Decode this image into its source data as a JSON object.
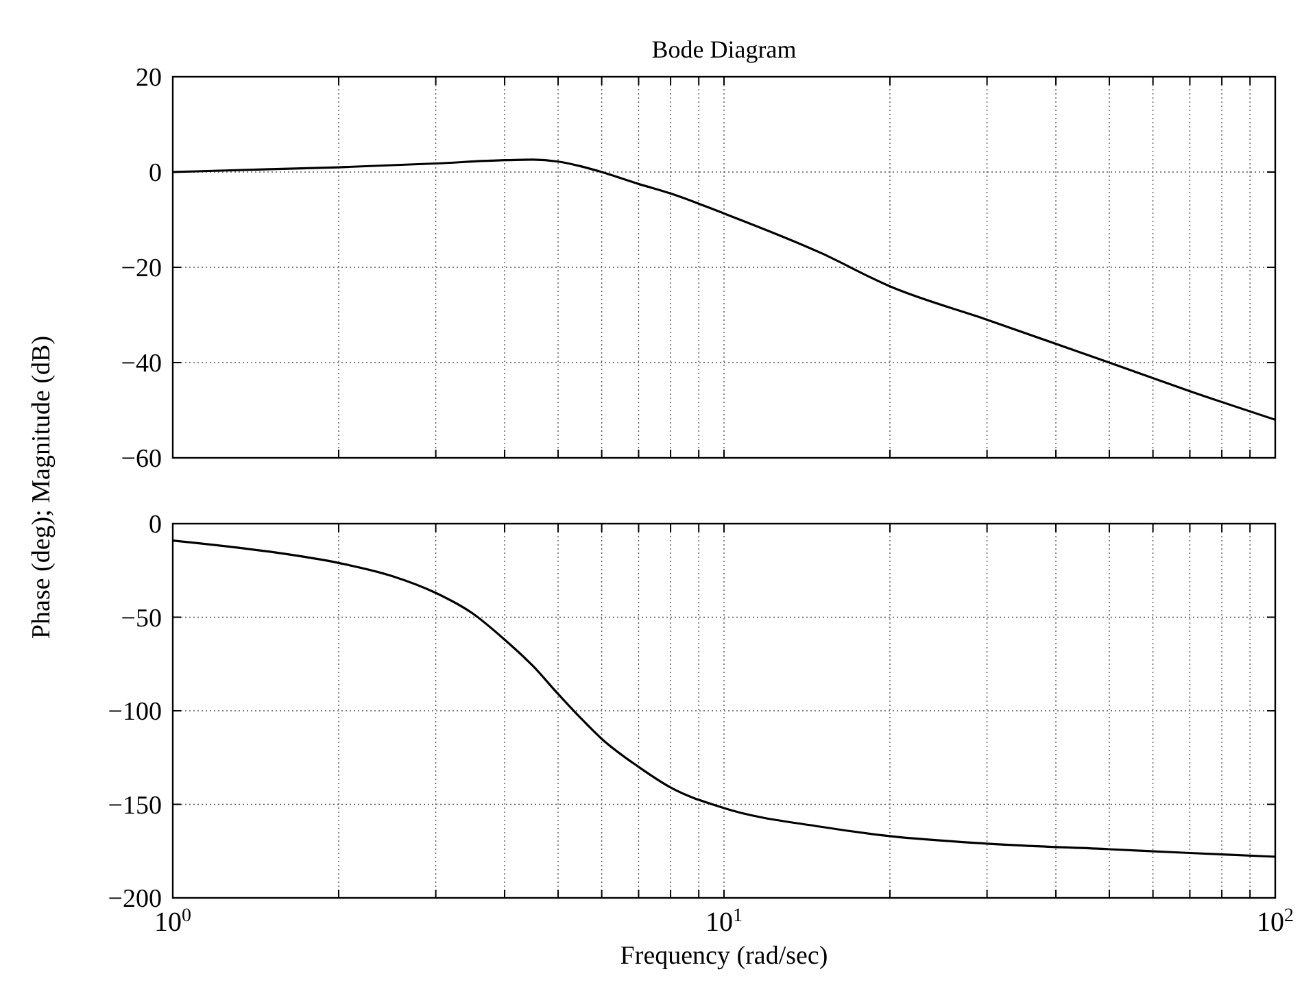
{
  "chart_data": [
    {
      "type": "line",
      "title": "Bode Diagram",
      "ylabel": "Phase (deg); Magnitude (dB)",
      "log": "x",
      "grid": true,
      "tick_labels": "y",
      "xlim": [
        1,
        100
      ],
      "xticks": [
        {
          "value": 1,
          "label": null
        },
        {
          "value": 2,
          "label": null
        },
        {
          "value": 3,
          "label": null
        },
        {
          "value": 4,
          "label": null
        },
        {
          "value": 5,
          "label": null
        },
        {
          "value": 6,
          "label": null
        },
        {
          "value": 7,
          "label": null
        },
        {
          "value": 8,
          "label": null
        },
        {
          "value": 9,
          "label": null
        },
        {
          "value": 10,
          "label": null
        },
        {
          "value": 20,
          "label": null
        },
        {
          "value": 30,
          "label": null
        },
        {
          "value": 40,
          "label": null
        },
        {
          "value": 50,
          "label": null
        },
        {
          "value": 60,
          "label": null
        },
        {
          "value": 70,
          "label": null
        },
        {
          "value": 80,
          "label": null
        },
        {
          "value": 90,
          "label": null
        },
        {
          "value": 100,
          "label": null
        }
      ],
      "ylim": [
        -60,
        20
      ],
      "yticks": [
        -60,
        -40,
        -20,
        0,
        20
      ],
      "x": [
        1,
        1.5,
        2,
        3,
        4,
        4.5,
        5,
        5.5,
        6,
        7,
        8,
        10,
        15,
        20,
        30,
        50,
        70,
        100
      ],
      "series": [
        {
          "color": "#000000",
          "values": [
            0,
            0.6,
            1,
            1.8,
            2.5,
            2.6,
            2.2,
            1.2,
            0,
            -2.5,
            -4.5,
            -8.7,
            -17,
            -24,
            -31,
            -40,
            -46,
            -52
          ]
        }
      ]
    },
    {
      "type": "line",
      "xlabel": "Frequency (rad/sec)",
      "log": "x",
      "grid": true,
      "xlim": [
        1,
        100
      ],
      "xticks": [
        {
          "value": 1,
          "label": "10$^{0}$"
        },
        {
          "value": 2,
          "label": null
        },
        {
          "value": 3,
          "label": null
        },
        {
          "value": 4,
          "label": null
        },
        {
          "value": 5,
          "label": null
        },
        {
          "value": 6,
          "label": null
        },
        {
          "value": 7,
          "label": null
        },
        {
          "value": 8,
          "label": null
        },
        {
          "value": 9,
          "label": null
        },
        {
          "value": 10,
          "label": "10$^{1}$"
        },
        {
          "value": 20,
          "label": null
        },
        {
          "value": 30,
          "label": null
        },
        {
          "value": 40,
          "label": null
        },
        {
          "value": 50,
          "label": null
        },
        {
          "value": 60,
          "label": null
        },
        {
          "value": 70,
          "label": null
        },
        {
          "value": 80,
          "label": null
        },
        {
          "value": 90,
          "label": null
        },
        {
          "value": 100,
          "label": "10$^{2}$"
        }
      ],
      "ylim": [
        -200,
        0
      ],
      "yticks": [
        -200,
        -150,
        -100,
        -50,
        0
      ],
      "x": [
        1,
        1.5,
        2,
        2.5,
        3,
        3.5,
        4,
        4.5,
        5,
        5.5,
        6,
        7,
        8,
        10,
        15,
        20,
        30,
        50,
        70,
        100
      ],
      "series": [
        {
          "color": "#000000",
          "values": [
            -9,
            -15,
            -21,
            -28,
            -37,
            -48,
            -62,
            -76,
            -91,
            -104,
            -115,
            -130,
            -141,
            -152,
            -162,
            -167,
            -171,
            -174,
            -176,
            -178
          ]
        }
      ]
    }
  ]
}
